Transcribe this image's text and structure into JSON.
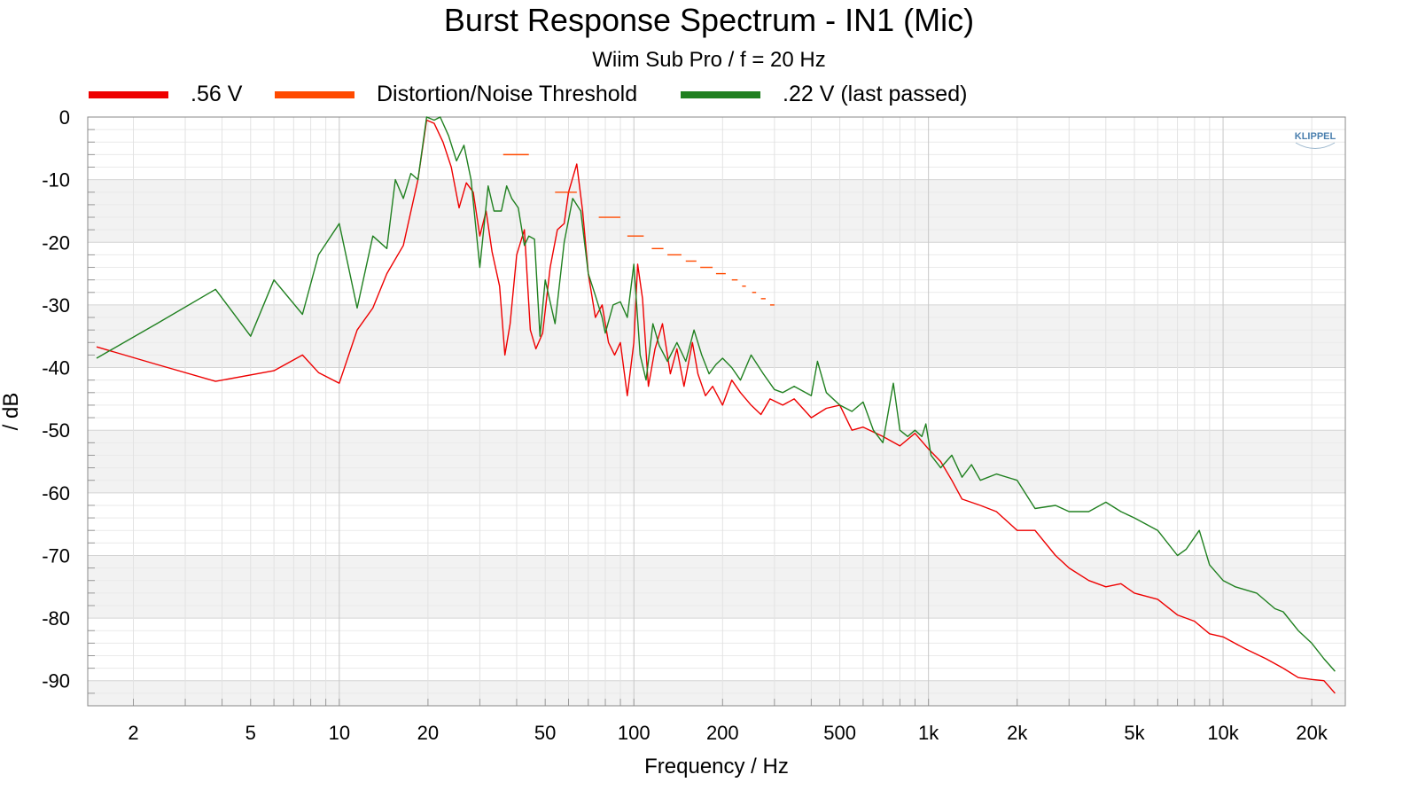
{
  "chart_data": {
    "type": "line",
    "title": "Burst Response Spectrum - IN1 (Mic)",
    "subtitle": "Wiim Sub Pro / f = 20 Hz",
    "xlabel": "Frequency / Hz",
    "ylabel": "/ dB",
    "xscale": "log",
    "xlim": [
      1.4,
      26000
    ],
    "ylim": [
      -94,
      0
    ],
    "grid": true,
    "legend_position": "top",
    "x_tick_labels": [
      {
        "v": 2,
        "label": "2"
      },
      {
        "v": 5,
        "label": "5"
      },
      {
        "v": 10,
        "label": "10"
      },
      {
        "v": 20,
        "label": "20"
      },
      {
        "v": 50,
        "label": "50"
      },
      {
        "v": 100,
        "label": "100"
      },
      {
        "v": 200,
        "label": "200"
      },
      {
        "v": 500,
        "label": "500"
      },
      {
        "v": 1000,
        "label": "1k"
      },
      {
        "v": 2000,
        "label": "2k"
      },
      {
        "v": 5000,
        "label": "5k"
      },
      {
        "v": 10000,
        "label": "10k"
      },
      {
        "v": 20000,
        "label": "20k"
      }
    ],
    "y_ticks": [
      0,
      -10,
      -20,
      -30,
      -40,
      -50,
      -60,
      -70,
      -80,
      -90
    ],
    "logo_text": "KLIPPEL",
    "series": [
      {
        "name": ".56 V",
        "color": "#ee0000",
        "style": "line",
        "points": [
          [
            1.5,
            -36.7
          ],
          [
            2.4,
            -39.5
          ],
          [
            3.8,
            -42.2
          ],
          [
            6,
            -40.5
          ],
          [
            7.5,
            -38
          ],
          [
            8.5,
            -40.8
          ],
          [
            10,
            -42.5
          ],
          [
            11.5,
            -34
          ],
          [
            13,
            -30.5
          ],
          [
            14.5,
            -25
          ],
          [
            16.5,
            -20.5
          ],
          [
            18.5,
            -10
          ],
          [
            19.8,
            -0.5
          ],
          [
            21,
            -1
          ],
          [
            22.5,
            -4
          ],
          [
            24,
            -8
          ],
          [
            25.5,
            -14.5
          ],
          [
            27,
            -10.5
          ],
          [
            28.5,
            -12
          ],
          [
            30,
            -19
          ],
          [
            31.5,
            -15
          ],
          [
            33,
            -21.5
          ],
          [
            35,
            -27
          ],
          [
            36.5,
            -38
          ],
          [
            38,
            -33
          ],
          [
            40,
            -22
          ],
          [
            42.5,
            -18
          ],
          [
            44.5,
            -34
          ],
          [
            46.5,
            -37
          ],
          [
            49,
            -34.5
          ],
          [
            52,
            -24
          ],
          [
            55,
            -18
          ],
          [
            58,
            -17
          ],
          [
            60,
            -12
          ],
          [
            64,
            -7.5
          ],
          [
            67,
            -15
          ],
          [
            70,
            -25
          ],
          [
            74,
            -32
          ],
          [
            78,
            -30
          ],
          [
            82,
            -36
          ],
          [
            86,
            -38
          ],
          [
            90,
            -36
          ],
          [
            95,
            -44.5
          ],
          [
            100,
            -36
          ],
          [
            103,
            -23.5
          ],
          [
            107,
            -29
          ],
          [
            112,
            -43
          ],
          [
            118,
            -37
          ],
          [
            125,
            -33
          ],
          [
            133,
            -41
          ],
          [
            140,
            -37
          ],
          [
            148,
            -43
          ],
          [
            158,
            -36
          ],
          [
            165,
            -41
          ],
          [
            175,
            -44.5
          ],
          [
            185,
            -43
          ],
          [
            200,
            -46
          ],
          [
            215,
            -42
          ],
          [
            230,
            -44
          ],
          [
            250,
            -46
          ],
          [
            270,
            -47.5
          ],
          [
            290,
            -45
          ],
          [
            320,
            -46
          ],
          [
            350,
            -45
          ],
          [
            400,
            -48
          ],
          [
            450,
            -46.5
          ],
          [
            500,
            -46
          ],
          [
            550,
            -50
          ],
          [
            600,
            -49.5
          ],
          [
            700,
            -51
          ],
          [
            800,
            -52.5
          ],
          [
            900,
            -50.5
          ],
          [
            1000,
            -53
          ],
          [
            1100,
            -55
          ],
          [
            1200,
            -58
          ],
          [
            1300,
            -61
          ],
          [
            1500,
            -62
          ],
          [
            1700,
            -63
          ],
          [
            2000,
            -66
          ],
          [
            2300,
            -66
          ],
          [
            2700,
            -70
          ],
          [
            3000,
            -72
          ],
          [
            3500,
            -74
          ],
          [
            4000,
            -75
          ],
          [
            4500,
            -74.5
          ],
          [
            5000,
            -76
          ],
          [
            6000,
            -77
          ],
          [
            7000,
            -79.5
          ],
          [
            8000,
            -80.5
          ],
          [
            9000,
            -82.5
          ],
          [
            10000,
            -83
          ],
          [
            12000,
            -85
          ],
          [
            14000,
            -86.5
          ],
          [
            16000,
            -88
          ],
          [
            18000,
            -89.5
          ],
          [
            20000,
            -89.8
          ],
          [
            22000,
            -90
          ],
          [
            24000,
            -92
          ]
        ]
      },
      {
        "name": "Distortion/Noise Threshold",
        "color": "#ff4a00",
        "style": "segments",
        "segments": [
          [
            36,
            44,
            -6
          ],
          [
            54,
            64,
            -12
          ],
          [
            76,
            90,
            -16
          ],
          [
            95,
            108,
            -19
          ],
          [
            115,
            126,
            -21
          ],
          [
            130,
            145,
            -22
          ],
          [
            150,
            163,
            -23
          ],
          [
            168,
            185,
            -24
          ],
          [
            190,
            205,
            -25
          ],
          [
            215,
            225,
            -26
          ],
          [
            233,
            240,
            -27
          ],
          [
            252,
            260,
            -28
          ],
          [
            270,
            280,
            -29
          ],
          [
            290,
            300,
            -30
          ]
        ]
      },
      {
        "name": ".22 V (last passed)",
        "color": "#208020",
        "style": "line",
        "points": [
          [
            1.5,
            -38.5
          ],
          [
            2.4,
            -33
          ],
          [
            3.8,
            -27.5
          ],
          [
            5,
            -35
          ],
          [
            6,
            -26
          ],
          [
            7.5,
            -31.5
          ],
          [
            8.5,
            -22
          ],
          [
            10,
            -17
          ],
          [
            11.5,
            -30.5
          ],
          [
            13,
            -19
          ],
          [
            14.5,
            -21
          ],
          [
            15.5,
            -10
          ],
          [
            16.5,
            -13
          ],
          [
            17.5,
            -9
          ],
          [
            18.5,
            -10
          ],
          [
            19.8,
            0
          ],
          [
            21,
            -0.5
          ],
          [
            22,
            0
          ],
          [
            23.5,
            -3
          ],
          [
            25,
            -7
          ],
          [
            26.5,
            -4.5
          ],
          [
            28,
            -10
          ],
          [
            30,
            -24
          ],
          [
            32,
            -11
          ],
          [
            33.5,
            -15
          ],
          [
            35.5,
            -15
          ],
          [
            37,
            -11
          ],
          [
            38.5,
            -13
          ],
          [
            40.5,
            -14.5
          ],
          [
            42.5,
            -20.5
          ],
          [
            44,
            -19
          ],
          [
            46,
            -19.5
          ],
          [
            48,
            -35
          ],
          [
            50,
            -26
          ],
          [
            54,
            -33
          ],
          [
            58,
            -20
          ],
          [
            62,
            -13
          ],
          [
            66,
            -15
          ],
          [
            70,
            -25
          ],
          [
            74,
            -28.5
          ],
          [
            78,
            -32
          ],
          [
            80,
            -34.5
          ],
          [
            85,
            -30
          ],
          [
            90,
            -29.5
          ],
          [
            95,
            -32
          ],
          [
            100,
            -23.5
          ],
          [
            105,
            -38
          ],
          [
            110,
            -42
          ],
          [
            116,
            -33
          ],
          [
            122,
            -36.5
          ],
          [
            130,
            -39
          ],
          [
            140,
            -36
          ],
          [
            150,
            -39
          ],
          [
            160,
            -34
          ],
          [
            170,
            -38
          ],
          [
            180,
            -41
          ],
          [
            190,
            -39.5
          ],
          [
            200,
            -38.5
          ],
          [
            215,
            -40
          ],
          [
            230,
            -42
          ],
          [
            250,
            -38
          ],
          [
            275,
            -41
          ],
          [
            300,
            -43.5
          ],
          [
            320,
            -44
          ],
          [
            350,
            -43
          ],
          [
            400,
            -44.5
          ],
          [
            420,
            -39
          ],
          [
            450,
            -44
          ],
          [
            500,
            -46
          ],
          [
            550,
            -47
          ],
          [
            600,
            -45.5
          ],
          [
            650,
            -50
          ],
          [
            700,
            -52
          ],
          [
            760,
            -42.5
          ],
          [
            800,
            -50
          ],
          [
            850,
            -51
          ],
          [
            900,
            -50
          ],
          [
            950,
            -51
          ],
          [
            980,
            -49
          ],
          [
            1020,
            -54
          ],
          [
            1100,
            -56
          ],
          [
            1200,
            -54
          ],
          [
            1300,
            -57.5
          ],
          [
            1400,
            -55.5
          ],
          [
            1500,
            -58
          ],
          [
            1700,
            -57
          ],
          [
            2000,
            -58
          ],
          [
            2300,
            -62.5
          ],
          [
            2700,
            -62
          ],
          [
            3000,
            -63
          ],
          [
            3500,
            -63
          ],
          [
            4000,
            -61.5
          ],
          [
            4500,
            -63
          ],
          [
            5000,
            -64
          ],
          [
            6000,
            -66
          ],
          [
            7000,
            -70
          ],
          [
            7500,
            -69
          ],
          [
            8300,
            -66
          ],
          [
            9000,
            -71.5
          ],
          [
            10000,
            -74
          ],
          [
            11000,
            -75
          ],
          [
            13000,
            -76
          ],
          [
            15000,
            -78.5
          ],
          [
            16000,
            -79
          ],
          [
            18000,
            -82
          ],
          [
            20000,
            -84
          ],
          [
            22000,
            -86.5
          ],
          [
            24000,
            -88.5
          ]
        ]
      }
    ]
  }
}
